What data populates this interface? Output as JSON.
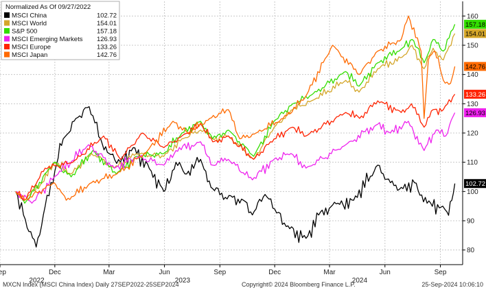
{
  "chart_data": {
    "type": "line",
    "title": "Normalized As Of 09/27/2022",
    "ylim": [
      75,
      165
    ],
    "y_ticks": [
      80,
      90,
      100,
      110,
      120,
      130,
      140,
      150,
      160
    ],
    "x_range": [
      "2022-09-01",
      "2024-10-08"
    ],
    "x_ticks": [
      {
        "date": "2022-09-01",
        "label": "Sep"
      },
      {
        "date": "2022-12-01",
        "label": "Dec"
      },
      {
        "date": "2023-03-01",
        "label": "Mar"
      },
      {
        "date": "2023-06-01",
        "label": "Jun"
      },
      {
        "date": "2023-09-01",
        "label": "Sep"
      },
      {
        "date": "2023-12-01",
        "label": "Dec"
      },
      {
        "date": "2024-03-01",
        "label": "Mar"
      },
      {
        "date": "2024-06-01",
        "label": "Jun"
      },
      {
        "date": "2024-09-01",
        "label": "Sep"
      }
    ],
    "year_labels": [
      {
        "label": "2022",
        "date": "2022-11-01"
      },
      {
        "label": "2023",
        "date": "2023-07-01"
      },
      {
        "label": "2024",
        "date": "2024-04-20"
      }
    ],
    "grid": true,
    "legend_position": "top-left",
    "series": [
      {
        "name": "MSCI China",
        "last_value": "102.72",
        "color": "#000000",
        "points": [
          [
            "2022-09-27",
            100
          ],
          [
            "2022-10-10",
            92
          ],
          [
            "2022-10-31",
            81
          ],
          [
            "2022-11-15",
            95
          ],
          [
            "2022-12-01",
            107
          ],
          [
            "2022-12-15",
            118
          ],
          [
            "2023-01-05",
            125
          ],
          [
            "2023-01-27",
            129
          ],
          [
            "2023-02-15",
            118
          ],
          [
            "2023-03-01",
            113
          ],
          [
            "2023-03-20",
            110
          ],
          [
            "2023-04-10",
            115
          ],
          [
            "2023-05-10",
            107
          ],
          [
            "2023-05-31",
            100
          ],
          [
            "2023-06-20",
            110
          ],
          [
            "2023-07-05",
            106
          ],
          [
            "2023-07-31",
            111
          ],
          [
            "2023-08-20",
            101
          ],
          [
            "2023-09-10",
            98
          ],
          [
            "2023-10-10",
            97
          ],
          [
            "2023-10-25",
            92
          ],
          [
            "2023-11-15",
            99
          ],
          [
            "2023-12-01",
            94
          ],
          [
            "2023-12-20",
            88
          ],
          [
            "2024-01-22",
            84
          ],
          [
            "2024-02-15",
            93
          ],
          [
            "2024-03-15",
            96
          ],
          [
            "2024-04-10",
            97
          ],
          [
            "2024-05-20",
            109
          ],
          [
            "2024-06-10",
            103
          ],
          [
            "2024-07-01",
            101
          ],
          [
            "2024-07-20",
            103
          ],
          [
            "2024-08-10",
            96
          ],
          [
            "2024-09-05",
            95
          ],
          [
            "2024-09-12",
            93
          ],
          [
            "2024-09-20",
            97
          ],
          [
            "2024-09-25",
            102.72
          ]
        ]
      },
      {
        "name": "MSCI World",
        "last_value": "154.01",
        "color": "#d4a62a",
        "points": [
          [
            "2022-09-27",
            100
          ],
          [
            "2022-10-12",
            97
          ],
          [
            "2022-11-10",
            103
          ],
          [
            "2022-12-01",
            110
          ],
          [
            "2022-12-28",
            106
          ],
          [
            "2023-01-31",
            113
          ],
          [
            "2023-03-10",
            108
          ],
          [
            "2023-04-15",
            113
          ],
          [
            "2023-05-31",
            112
          ],
          [
            "2023-06-30",
            118
          ],
          [
            "2023-07-31",
            121
          ],
          [
            "2023-08-20",
            118
          ],
          [
            "2023-09-15",
            119
          ],
          [
            "2023-10-27",
            111
          ],
          [
            "2023-11-30",
            122
          ],
          [
            "2023-12-31",
            128
          ],
          [
            "2024-01-31",
            131
          ],
          [
            "2024-03-28",
            138
          ],
          [
            "2024-04-19",
            134
          ],
          [
            "2024-05-20",
            142
          ],
          [
            "2024-06-30",
            146
          ],
          [
            "2024-07-16",
            150
          ],
          [
            "2024-08-05",
            142
          ],
          [
            "2024-08-20",
            149
          ],
          [
            "2024-09-06",
            145
          ],
          [
            "2024-09-25",
            154.01
          ]
        ]
      },
      {
        "name": "S&P 500",
        "last_value": "157.18",
        "color": "#33dd00",
        "points": [
          [
            "2022-09-27",
            100
          ],
          [
            "2022-10-12",
            96
          ],
          [
            "2022-11-30",
            110
          ],
          [
            "2022-12-28",
            105
          ],
          [
            "2023-02-02",
            114
          ],
          [
            "2023-03-13",
            106
          ],
          [
            "2023-04-15",
            112
          ],
          [
            "2023-05-31",
            113
          ],
          [
            "2023-06-30",
            120
          ],
          [
            "2023-07-31",
            124
          ],
          [
            "2023-08-20",
            118
          ],
          [
            "2023-09-15",
            121
          ],
          [
            "2023-10-27",
            112
          ],
          [
            "2023-11-30",
            124
          ],
          [
            "2023-12-31",
            130
          ],
          [
            "2024-01-31",
            133
          ],
          [
            "2024-03-28",
            141
          ],
          [
            "2024-04-19",
            136
          ],
          [
            "2024-05-20",
            144
          ],
          [
            "2024-06-30",
            149
          ],
          [
            "2024-07-16",
            152
          ],
          [
            "2024-08-05",
            144
          ],
          [
            "2024-08-20",
            152
          ],
          [
            "2024-09-06",
            148
          ],
          [
            "2024-09-25",
            157.18
          ]
        ]
      },
      {
        "name": "MSCI Emerging Markets",
        "last_value": "126.93",
        "color": "#ee22ee",
        "points": [
          [
            "2022-09-27",
            100
          ],
          [
            "2022-10-24",
            96
          ],
          [
            "2022-11-30",
            105
          ],
          [
            "2023-01-26",
            116
          ],
          [
            "2023-03-10",
            108
          ],
          [
            "2023-04-18",
            112
          ],
          [
            "2023-05-31",
            109
          ],
          [
            "2023-06-20",
            114
          ],
          [
            "2023-07-31",
            117
          ],
          [
            "2023-08-20",
            109
          ],
          [
            "2023-09-15",
            111
          ],
          [
            "2023-10-25",
            104
          ],
          [
            "2023-11-30",
            111
          ],
          [
            "2023-12-28",
            113
          ],
          [
            "2024-01-22",
            108
          ],
          [
            "2024-03-28",
            116
          ],
          [
            "2024-05-20",
            123
          ],
          [
            "2024-06-10",
            120
          ],
          [
            "2024-07-10",
            124
          ],
          [
            "2024-08-05",
            114
          ],
          [
            "2024-08-25",
            121
          ],
          [
            "2024-09-10",
            119
          ],
          [
            "2024-09-25",
            126.93
          ]
        ]
      },
      {
        "name": "MSCI Europe",
        "last_value": "133.26",
        "color": "#ff2200",
        "points": [
          [
            "2022-09-27",
            100
          ],
          [
            "2022-10-12",
            97
          ],
          [
            "2022-11-15",
            108
          ],
          [
            "2022-12-31",
            110
          ],
          [
            "2023-02-20",
            119
          ],
          [
            "2023-03-20",
            111
          ],
          [
            "2023-04-25",
            120
          ],
          [
            "2023-05-31",
            115
          ],
          [
            "2023-06-30",
            119
          ],
          [
            "2023-07-31",
            123
          ],
          [
            "2023-08-20",
            117
          ],
          [
            "2023-09-15",
            119
          ],
          [
            "2023-10-27",
            111
          ],
          [
            "2023-11-30",
            118
          ],
          [
            "2023-12-31",
            122
          ],
          [
            "2024-01-22",
            119
          ],
          [
            "2024-03-28",
            127
          ],
          [
            "2024-04-20",
            125
          ],
          [
            "2024-05-20",
            131
          ],
          [
            "2024-06-28",
            127
          ],
          [
            "2024-07-15",
            130
          ],
          [
            "2024-08-05",
            122
          ],
          [
            "2024-08-20",
            128
          ],
          [
            "2024-09-06",
            128
          ],
          [
            "2024-09-25",
            133.26
          ]
        ]
      },
      {
        "name": "MSCI Japan",
        "last_value": "142.76",
        "color": "#ff6a00",
        "points": [
          [
            "2022-09-27",
            100
          ],
          [
            "2022-10-12",
            97
          ],
          [
            "2022-11-30",
            103
          ],
          [
            "2022-12-20",
            97
          ],
          [
            "2023-01-31",
            103
          ],
          [
            "2023-03-14",
            106
          ],
          [
            "2023-04-30",
            113
          ],
          [
            "2023-06-15",
            124
          ],
          [
            "2023-07-10",
            120
          ],
          [
            "2023-08-15",
            125
          ],
          [
            "2023-09-15",
            128
          ],
          [
            "2023-10-04",
            118
          ],
          [
            "2023-10-31",
            120
          ],
          [
            "2023-12-15",
            125
          ],
          [
            "2024-01-20",
            132
          ],
          [
            "2024-03-06",
            150
          ],
          [
            "2024-04-19",
            140
          ],
          [
            "2024-05-20",
            148
          ],
          [
            "2024-06-28",
            152
          ],
          [
            "2024-07-10",
            160
          ],
          [
            "2024-07-31",
            148
          ],
          [
            "2024-08-05",
            125
          ],
          [
            "2024-08-12",
            145
          ],
          [
            "2024-08-23",
            148
          ],
          [
            "2024-09-06",
            138
          ],
          [
            "2024-09-18",
            137
          ],
          [
            "2024-09-25",
            142.76
          ]
        ]
      }
    ]
  },
  "footer": {
    "left": "MXCN Index (MSCI China Index)  Daily 27SEP2022-25SEP2024",
    "center": "Copyright© 2024 Bloomberg Finance L.P.",
    "right": "25-Sep-2024 10:06:10"
  }
}
